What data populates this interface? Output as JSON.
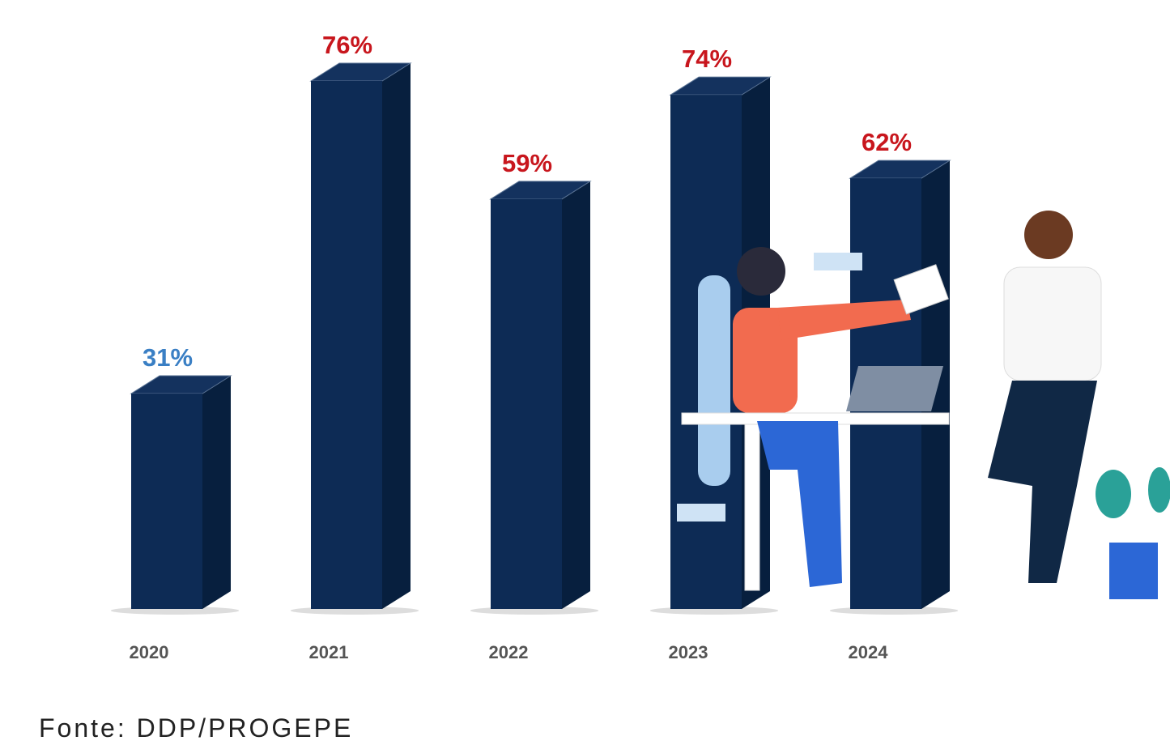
{
  "chart_data": {
    "type": "bar",
    "categories": [
      "2020",
      "2021",
      "2022",
      "2023",
      "2024"
    ],
    "values": [
      31,
      76,
      59,
      74,
      62
    ],
    "value_labels": [
      "31%",
      "76%",
      "59%",
      "74%",
      "62%"
    ],
    "value_label_colors": [
      "#3a7fc4",
      "#c8161d",
      "#c8161d",
      "#c8161d",
      "#c8161d"
    ],
    "color": "#0d2b55",
    "source": "Fonte: DDP/PROGEPE"
  }
}
